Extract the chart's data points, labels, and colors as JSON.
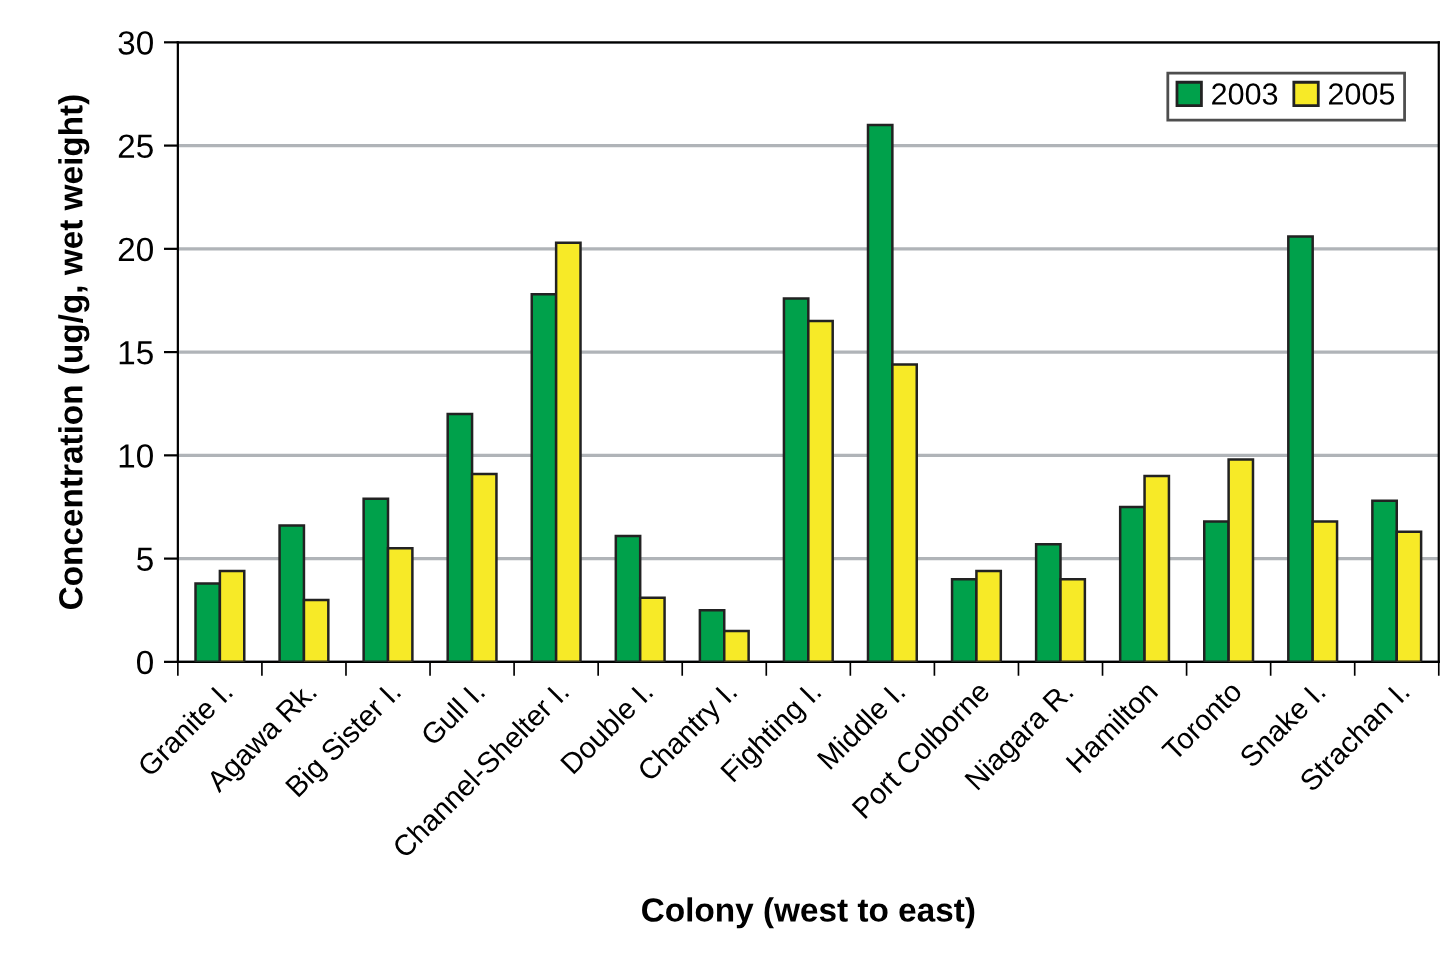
{
  "chart_data": {
    "type": "bar",
    "xlabel": "Colony (west to east)",
    "ylabel": "Concentration (ug/g, wet weight)",
    "categories": [
      "Granite I.",
      "Agawa Rk.",
      "Big Sister I.",
      "Gull I.",
      "Channel-Shelter I.",
      "Double I.",
      "Chantry I.",
      "Fighting I.",
      "Middle I.",
      "Port Colborne",
      "Niagara R.",
      "Hamilton",
      "Toronto",
      "Snake I.",
      "Strachan I."
    ],
    "series": [
      {
        "name": "2003",
        "color": "#00a14b",
        "values": [
          3.8,
          6.6,
          7.9,
          12.0,
          17.8,
          6.1,
          2.5,
          17.6,
          26.0,
          4.0,
          5.7,
          7.5,
          6.8,
          20.6,
          7.8
        ]
      },
      {
        "name": "2005",
        "color": "#f7ea27",
        "values": [
          4.4,
          3.0,
          5.5,
          9.1,
          20.3,
          3.1,
          1.5,
          16.5,
          14.4,
          4.4,
          4.0,
          9.0,
          9.8,
          6.8,
          6.3
        ]
      }
    ],
    "ylim": [
      0,
      30
    ],
    "yticks": [
      0,
      5,
      10,
      15,
      20,
      25,
      30
    ],
    "grid": "y",
    "legend": "top right"
  }
}
